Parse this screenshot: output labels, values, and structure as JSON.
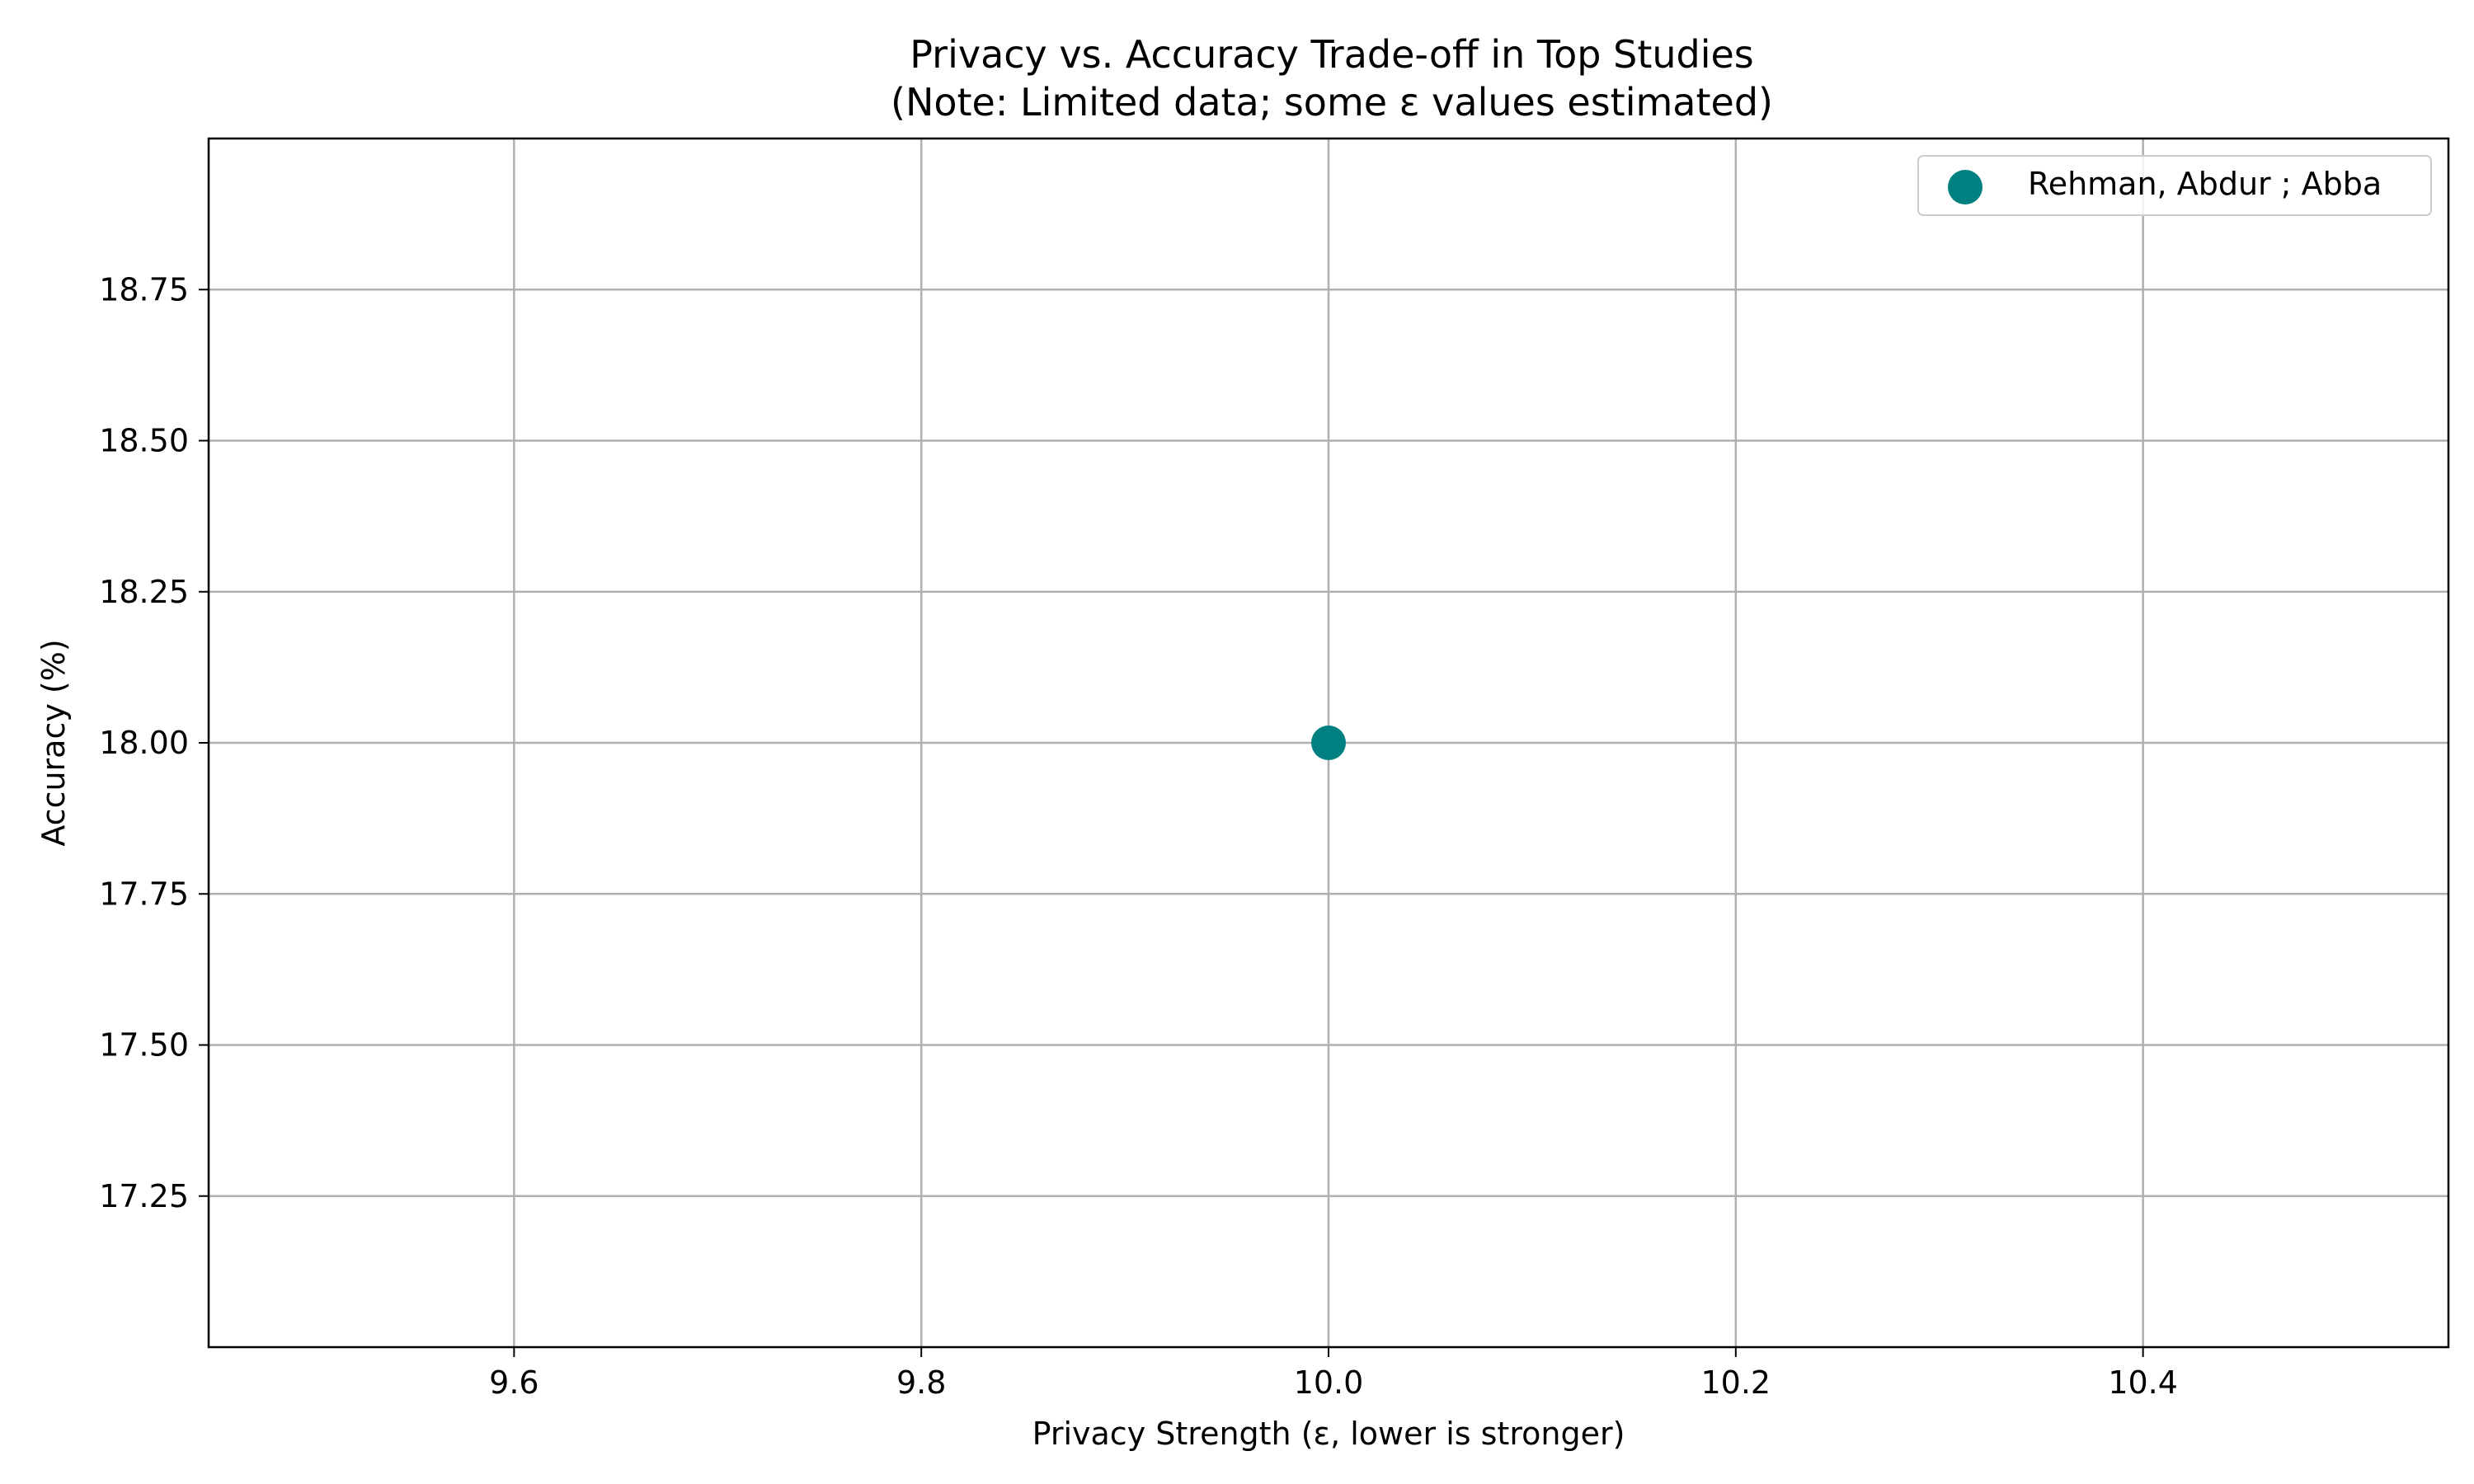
{
  "chart_data": {
    "type": "scatter",
    "title": "Privacy vs. Accuracy Trade-off in Top Studies",
    "subtitle": "(Note: Limited data; some ε values estimated)",
    "xlabel": "Privacy Strength (ε, lower is stronger)",
    "ylabel": "Accuracy (%)",
    "xlim": [
      9.45,
      10.55
    ],
    "ylim": [
      17.0,
      19.0
    ],
    "x_ticks": [
      9.6,
      9.8,
      10.0,
      10.2,
      10.4
    ],
    "x_tick_labels": [
      "9.6",
      "9.8",
      "10.0",
      "10.2",
      "10.4"
    ],
    "y_ticks": [
      17.25,
      17.5,
      17.75,
      18.0,
      18.25,
      18.5,
      18.75
    ],
    "y_tick_labels": [
      "17.25",
      "17.50",
      "17.75",
      "18.00",
      "18.25",
      "18.50",
      "18.75"
    ],
    "grid": true,
    "legend_position": "top-right",
    "series": [
      {
        "name": "Rehman, Abdur ; Abba",
        "color": "#008080",
        "points": [
          {
            "x": 10.0,
            "y": 18.0
          }
        ]
      }
    ]
  }
}
